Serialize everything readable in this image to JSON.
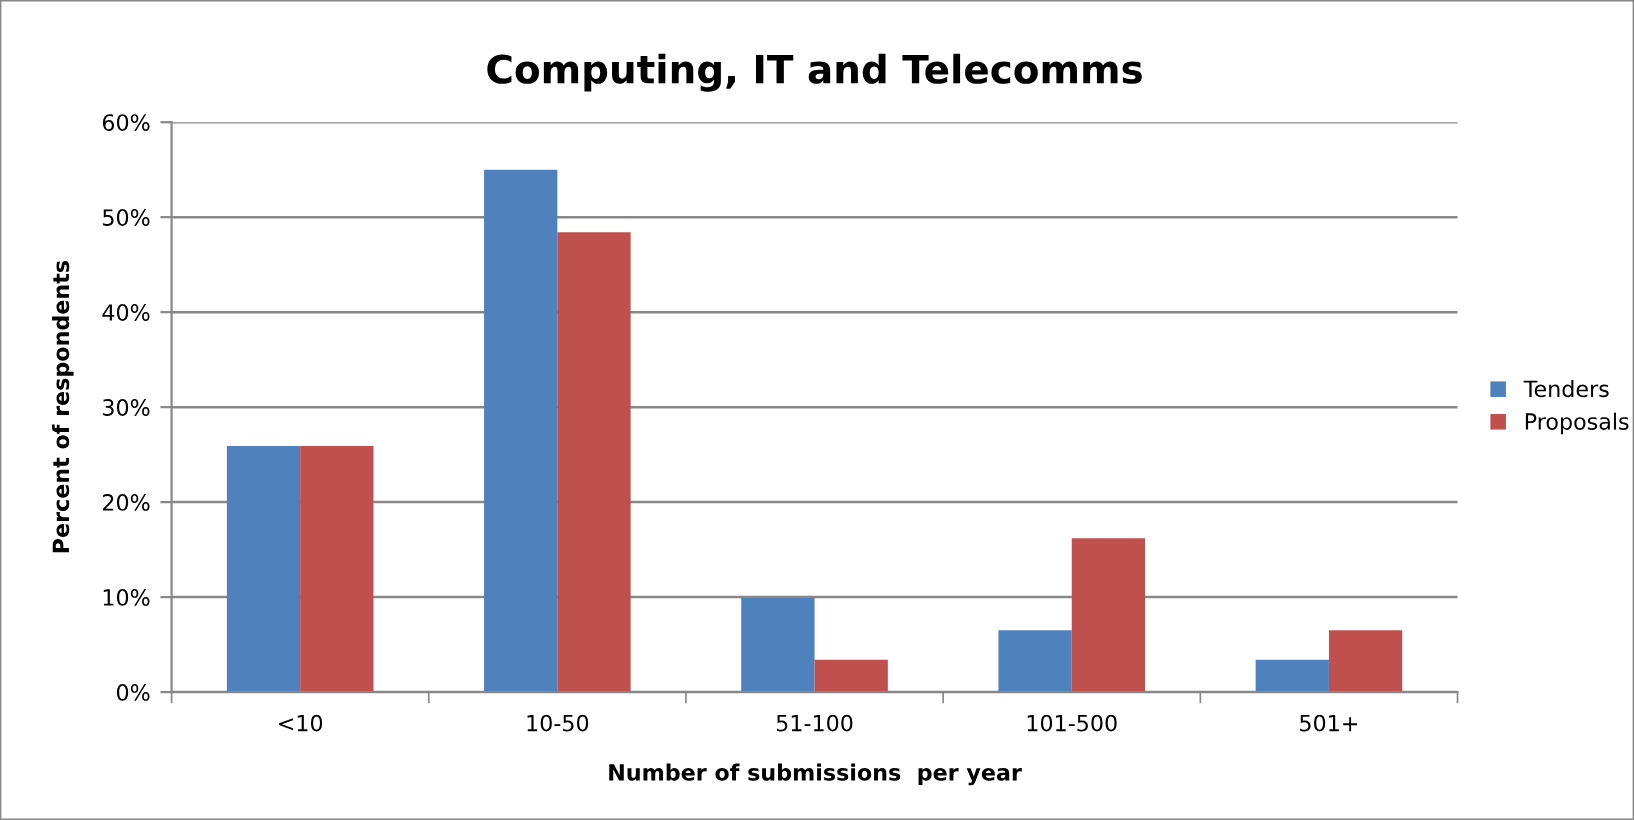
{
  "chart_data": {
    "type": "bar",
    "title": "Computing, IT and Telecomms",
    "xlabel": "Number of submissions  per year",
    "ylabel": "Percent of respondents",
    "categories": [
      "<10",
      "10-50",
      "51-100",
      "101-500",
      "501+"
    ],
    "series": [
      {
        "name": "Tenders",
        "color": "#4f81bd",
        "values": [
          25.9,
          55,
          9.9,
          6.5,
          3.4
        ]
      },
      {
        "name": "Proposals",
        "color": "#c0504d",
        "values": [
          25.9,
          48.4,
          3.4,
          16.2,
          6.5
        ]
      }
    ],
    "ylim": [
      0,
      60
    ],
    "yticks": [
      {
        "value": 0,
        "label": "0%"
      },
      {
        "value": 10,
        "label": "10%"
      },
      {
        "value": 20,
        "label": "20%"
      },
      {
        "value": 30,
        "label": "30%"
      },
      {
        "value": 40,
        "label": "40%"
      },
      {
        "value": 50,
        "label": "50%"
      },
      {
        "value": 60,
        "label": "60%"
      }
    ],
    "grid": "y",
    "legend": "right"
  }
}
